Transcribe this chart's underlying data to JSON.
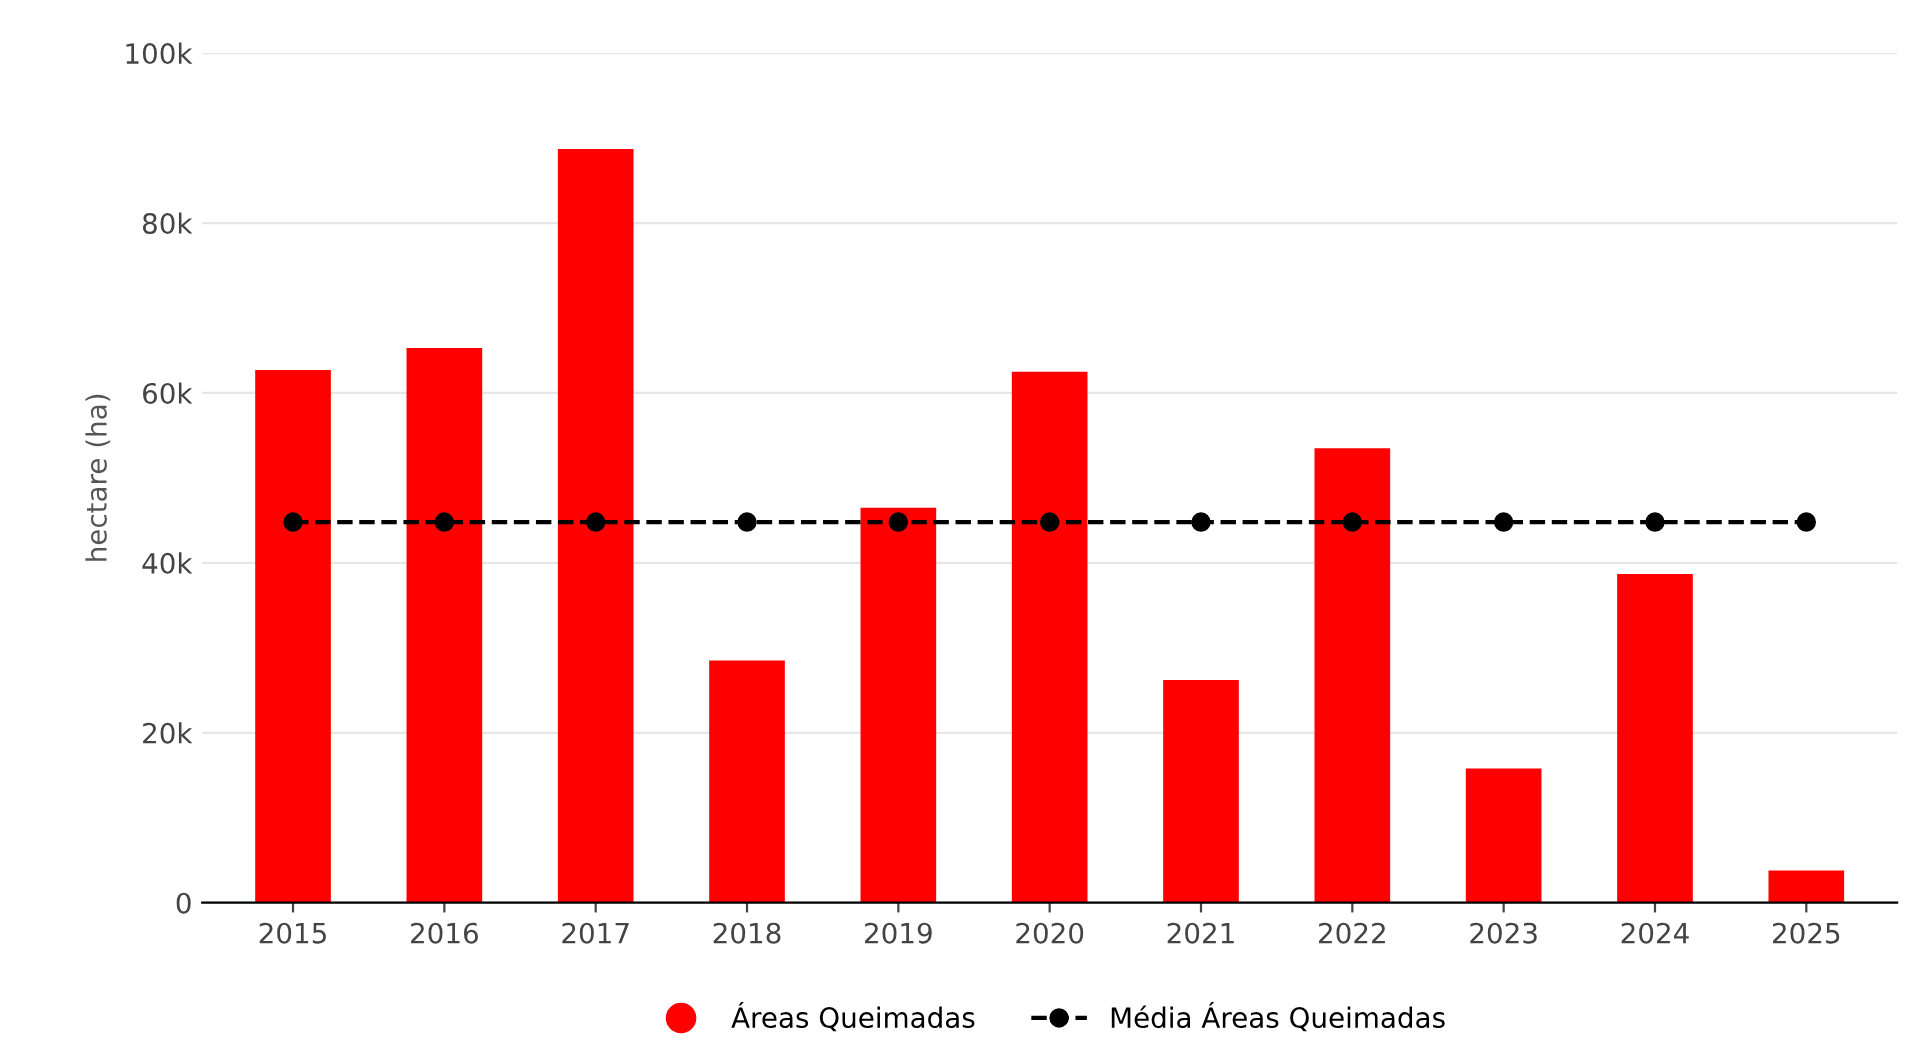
{
  "chart_data": {
    "type": "bar",
    "ylabel": "hectare (ha)",
    "categories": [
      "2015",
      "2016",
      "2017",
      "2018",
      "2019",
      "2020",
      "2021",
      "2022",
      "2023",
      "2024",
      "2025"
    ],
    "series": [
      {
        "name": "Áreas Queimadas",
        "color": "#ff0000",
        "values": [
          62.7,
          65.3,
          88.7,
          28.5,
          46.5,
          62.5,
          26.2,
          53.5,
          15.8,
          38.7,
          3.8
        ]
      },
      {
        "name": "Média Áreas Queimadas",
        "type": "line",
        "color": "#000000",
        "marker": "circle",
        "line_style": "dashed",
        "values": [
          44.8,
          44.8,
          44.8,
          44.8,
          44.8,
          44.8,
          44.8,
          44.8,
          44.8,
          44.8,
          44.8
        ]
      }
    ],
    "ylim": [
      0,
      100
    ],
    "yticks": [
      {
        "value": 0,
        "label": "0"
      },
      {
        "value": 20,
        "label": "20k"
      },
      {
        "value": 40,
        "label": "40k"
      },
      {
        "value": 60,
        "label": "60k"
      },
      {
        "value": 80,
        "label": "80k"
      },
      {
        "value": 100,
        "label": "100k"
      }
    ],
    "grid": "y",
    "legend": "bottom"
  }
}
